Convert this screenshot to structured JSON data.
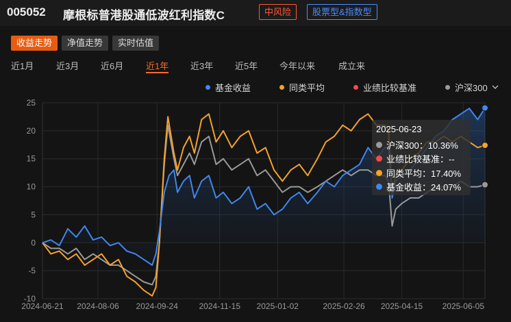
{
  "header": {
    "fund_code": "005052",
    "fund_name": "摩根标普港股通低波红利指数C",
    "risk_badge": "中风险",
    "type_badge": "股票型&指数型"
  },
  "subtabs": [
    {
      "label": "收益走势",
      "active": true
    },
    {
      "label": "净值走势",
      "active": false
    },
    {
      "label": "实时估值",
      "active": false
    }
  ],
  "periods": [
    {
      "label": "近1月",
      "active": false
    },
    {
      "label": "近3月",
      "active": false
    },
    {
      "label": "近6月",
      "active": false
    },
    {
      "label": "近1年",
      "active": true
    },
    {
      "label": "近3年",
      "active": false
    },
    {
      "label": "近5年",
      "active": false
    },
    {
      "label": "今年以来",
      "active": false
    },
    {
      "label": "成立来",
      "active": false
    }
  ],
  "legend": [
    {
      "label": "基金收益",
      "color": "#3f87f0"
    },
    {
      "label": "同类平均",
      "color": "#f5a22a"
    },
    {
      "label": "业绩比较基准",
      "color": "#f04c4c"
    },
    {
      "label": "沪深300",
      "color": "#9a9a9a",
      "dropdown_icon": "chevron-down-icon"
    }
  ],
  "tooltip": {
    "date": "2025-06-23",
    "rows": [
      {
        "label": "沪深300：10.36%",
        "color": "#9a9a9a"
      },
      {
        "label": "业绩比较基准：--",
        "color": "#f04c4c"
      },
      {
        "label": "同类平均：17.40%",
        "color": "#f5a22a"
      },
      {
        "label": "基金收益：24.07%",
        "color": "#3f87f0"
      }
    ]
  },
  "chart_data": {
    "type": "line",
    "ylim": [
      -10,
      25
    ],
    "y_ticks": [
      "25",
      "20",
      "15",
      "10",
      "5",
      "0",
      "-5",
      "-10"
    ],
    "x_ticks": [
      "2024-06-21",
      "2024-08-06",
      "2024-09-24",
      "2024-11-15",
      "2025-01-02",
      "2025-02-26",
      "2025-04-15",
      "2025-06-05"
    ],
    "x_domain": [
      "2024-06-21",
      "2025-06-23"
    ],
    "series": [
      {
        "name": "基金收益",
        "color": "#3f87f0",
        "area": true,
        "points": [
          [
            "2024-06-21",
            0
          ],
          [
            "2024-06-28",
            0.5
          ],
          [
            "2024-07-05",
            -0.5
          ],
          [
            "2024-07-12",
            2.5
          ],
          [
            "2024-07-19",
            1
          ],
          [
            "2024-07-26",
            3
          ],
          [
            "2024-08-02",
            0.5
          ],
          [
            "2024-08-09",
            1
          ],
          [
            "2024-08-16",
            -0.5
          ],
          [
            "2024-08-23",
            0
          ],
          [
            "2024-08-30",
            -1.5
          ],
          [
            "2024-09-06",
            -2
          ],
          [
            "2024-09-13",
            -3
          ],
          [
            "2024-09-20",
            -4
          ],
          [
            "2024-09-23",
            -2
          ],
          [
            "2024-09-26",
            2
          ],
          [
            "2024-09-30",
            9
          ],
          [
            "2024-10-04",
            12
          ],
          [
            "2024-10-08",
            13
          ],
          [
            "2024-10-11",
            9
          ],
          [
            "2024-10-16",
            11
          ],
          [
            "2024-10-21",
            12
          ],
          [
            "2024-10-25",
            8
          ],
          [
            "2024-10-31",
            11
          ],
          [
            "2024-11-06",
            12
          ],
          [
            "2024-11-12",
            8
          ],
          [
            "2024-11-18",
            9
          ],
          [
            "2024-11-25",
            7
          ],
          [
            "2024-12-02",
            8
          ],
          [
            "2024-12-09",
            10
          ],
          [
            "2024-12-16",
            6
          ],
          [
            "2024-12-23",
            7
          ],
          [
            "2024-12-30",
            5
          ],
          [
            "2025-01-06",
            6
          ],
          [
            "2025-01-13",
            8
          ],
          [
            "2025-01-20",
            9
          ],
          [
            "2025-01-27",
            7
          ],
          [
            "2025-02-04",
            9
          ],
          [
            "2025-02-11",
            11
          ],
          [
            "2025-02-18",
            10
          ],
          [
            "2025-02-25",
            12
          ],
          [
            "2025-03-04",
            13
          ],
          [
            "2025-03-11",
            14
          ],
          [
            "2025-03-18",
            17
          ],
          [
            "2025-03-25",
            15
          ],
          [
            "2025-04-01",
            17
          ],
          [
            "2025-04-04",
            17
          ],
          [
            "2025-04-07",
            8
          ],
          [
            "2025-04-10",
            11
          ],
          [
            "2025-04-15",
            12
          ],
          [
            "2025-04-22",
            13
          ],
          [
            "2025-04-29",
            15
          ],
          [
            "2025-05-06",
            17
          ],
          [
            "2025-05-13",
            19
          ],
          [
            "2025-05-20",
            20
          ],
          [
            "2025-05-27",
            22
          ],
          [
            "2025-06-03",
            23
          ],
          [
            "2025-06-10",
            24
          ],
          [
            "2025-06-17",
            22
          ],
          [
            "2025-06-23",
            24.07
          ]
        ]
      },
      {
        "name": "同类平均",
        "color": "#f5a22a",
        "area": false,
        "points": [
          [
            "2024-06-21",
            0
          ],
          [
            "2024-06-28",
            -2
          ],
          [
            "2024-07-05",
            -1.5
          ],
          [
            "2024-07-12",
            -3
          ],
          [
            "2024-07-19",
            -2
          ],
          [
            "2024-07-26",
            -4
          ],
          [
            "2024-08-02",
            -3
          ],
          [
            "2024-08-09",
            -2
          ],
          [
            "2024-08-16",
            -4
          ],
          [
            "2024-08-23",
            -3
          ],
          [
            "2024-08-30",
            -6
          ],
          [
            "2024-09-06",
            -7
          ],
          [
            "2024-09-13",
            -8.5
          ],
          [
            "2024-09-20",
            -9.5
          ],
          [
            "2024-09-23",
            -8
          ],
          [
            "2024-09-26",
            0
          ],
          [
            "2024-09-30",
            15
          ],
          [
            "2024-10-03",
            22.5
          ],
          [
            "2024-10-08",
            16
          ],
          [
            "2024-10-11",
            13
          ],
          [
            "2024-10-16",
            17
          ],
          [
            "2024-10-21",
            19
          ],
          [
            "2024-10-25",
            16
          ],
          [
            "2024-10-31",
            22
          ],
          [
            "2024-11-06",
            23
          ],
          [
            "2024-11-12",
            18
          ],
          [
            "2024-11-18",
            20
          ],
          [
            "2024-11-25",
            17
          ],
          [
            "2024-12-02",
            19
          ],
          [
            "2024-12-09",
            20
          ],
          [
            "2024-12-16",
            16
          ],
          [
            "2024-12-23",
            17
          ],
          [
            "2024-12-30",
            13
          ],
          [
            "2025-01-06",
            11
          ],
          [
            "2025-01-13",
            13
          ],
          [
            "2025-01-20",
            14
          ],
          [
            "2025-01-27",
            12
          ],
          [
            "2025-02-04",
            15
          ],
          [
            "2025-02-11",
            18
          ],
          [
            "2025-02-18",
            19
          ],
          [
            "2025-02-25",
            21
          ],
          [
            "2025-03-04",
            20
          ],
          [
            "2025-03-11",
            22
          ],
          [
            "2025-03-18",
            23
          ],
          [
            "2025-03-25",
            21
          ],
          [
            "2025-04-01",
            21
          ],
          [
            "2025-04-04",
            20
          ],
          [
            "2025-04-07",
            9
          ],
          [
            "2025-04-10",
            12
          ],
          [
            "2025-04-15",
            13
          ],
          [
            "2025-04-22",
            15
          ],
          [
            "2025-04-29",
            16
          ],
          [
            "2025-05-06",
            18
          ],
          [
            "2025-05-13",
            18
          ],
          [
            "2025-05-20",
            19
          ],
          [
            "2025-05-27",
            18
          ],
          [
            "2025-06-03",
            19
          ],
          [
            "2025-06-10",
            18
          ],
          [
            "2025-06-17",
            17
          ],
          [
            "2025-06-23",
            17.4
          ]
        ]
      },
      {
        "name": "沪深300",
        "color": "#9a9a9a",
        "area": false,
        "points": [
          [
            "2024-06-21",
            0
          ],
          [
            "2024-06-28",
            -1
          ],
          [
            "2024-07-05",
            -1
          ],
          [
            "2024-07-12",
            -2
          ],
          [
            "2024-07-19",
            -1
          ],
          [
            "2024-07-26",
            -3
          ],
          [
            "2024-08-02",
            -2
          ],
          [
            "2024-08-09",
            -3
          ],
          [
            "2024-08-16",
            -4
          ],
          [
            "2024-08-23",
            -4
          ],
          [
            "2024-08-30",
            -5
          ],
          [
            "2024-09-06",
            -6
          ],
          [
            "2024-09-13",
            -7
          ],
          [
            "2024-09-20",
            -7.5
          ],
          [
            "2024-09-23",
            -6
          ],
          [
            "2024-09-26",
            0
          ],
          [
            "2024-09-30",
            14
          ],
          [
            "2024-10-03",
            21
          ],
          [
            "2024-10-08",
            15
          ],
          [
            "2024-10-11",
            12
          ],
          [
            "2024-10-16",
            14
          ],
          [
            "2024-10-21",
            16
          ],
          [
            "2024-10-25",
            14
          ],
          [
            "2024-10-31",
            18
          ],
          [
            "2024-11-06",
            19
          ],
          [
            "2024-11-12",
            14
          ],
          [
            "2024-11-18",
            15
          ],
          [
            "2024-11-25",
            13
          ],
          [
            "2024-12-02",
            14
          ],
          [
            "2024-12-09",
            15
          ],
          [
            "2024-12-16",
            12
          ],
          [
            "2024-12-23",
            13
          ],
          [
            "2024-12-30",
            11
          ],
          [
            "2025-01-06",
            9
          ],
          [
            "2025-01-13",
            10
          ],
          [
            "2025-01-20",
            10
          ],
          [
            "2025-01-27",
            9
          ],
          [
            "2025-02-04",
            10
          ],
          [
            "2025-02-11",
            11
          ],
          [
            "2025-02-18",
            12
          ],
          [
            "2025-02-25",
            13
          ],
          [
            "2025-03-04",
            12
          ],
          [
            "2025-03-11",
            13
          ],
          [
            "2025-03-18",
            13
          ],
          [
            "2025-03-25",
            12
          ],
          [
            "2025-04-01",
            12
          ],
          [
            "2025-04-04",
            11
          ],
          [
            "2025-04-07",
            3
          ],
          [
            "2025-04-10",
            6
          ],
          [
            "2025-04-15",
            7
          ],
          [
            "2025-04-22",
            8
          ],
          [
            "2025-04-29",
            8
          ],
          [
            "2025-05-06",
            9
          ],
          [
            "2025-05-13",
            10
          ],
          [
            "2025-05-20",
            10
          ],
          [
            "2025-05-27",
            10
          ],
          [
            "2025-06-03",
            11
          ],
          [
            "2025-06-10",
            10
          ],
          [
            "2025-06-17",
            10
          ],
          [
            "2025-06-23",
            10.36
          ]
        ]
      }
    ],
    "grid": true
  }
}
